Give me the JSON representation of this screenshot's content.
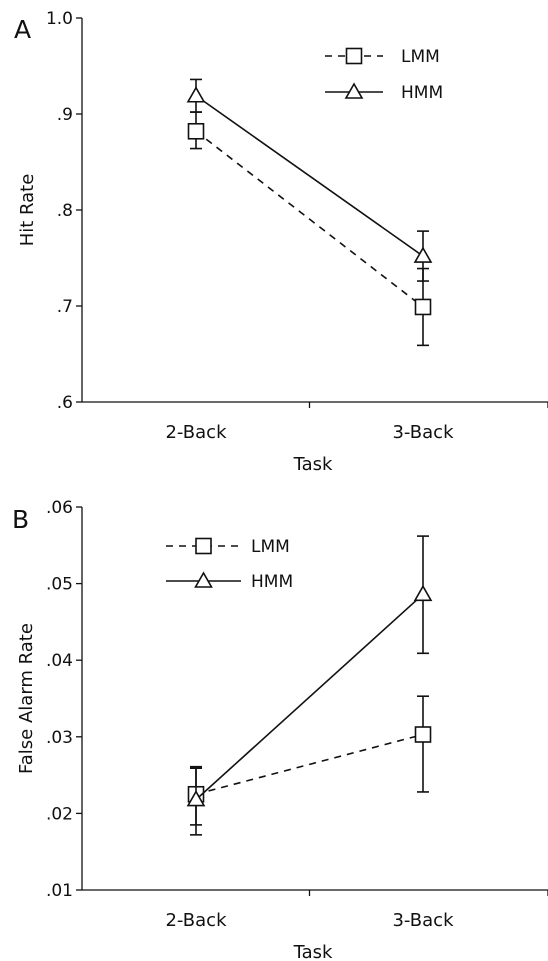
{
  "chart_data": [
    {
      "panel_label": "A",
      "type": "line",
      "xlabel": "Task",
      "ylabel": "Hit Rate",
      "categories": [
        "2-Back",
        "3-Back"
      ],
      "ylim": [
        0.6,
        1.0
      ],
      "yticks": [
        0.6,
        0.7,
        0.8,
        0.9,
        1.0
      ],
      "ytick_labels": [
        ".6",
        ".7",
        ".8",
        ".9",
        "1.0"
      ],
      "legend_position": "top-right",
      "grid": false,
      "series": [
        {
          "name": "LMM",
          "marker": "square",
          "dash": "dashed",
          "values": [
            0.882,
            0.699
          ],
          "err_low": [
            0.864,
            0.659
          ],
          "err_high": [
            0.902,
            0.739
          ]
        },
        {
          "name": "HMM",
          "marker": "triangle",
          "dash": "solid",
          "values": [
            0.919,
            0.752
          ],
          "err_low": [
            0.902,
            0.726
          ],
          "err_high": [
            0.936,
            0.778
          ]
        }
      ]
    },
    {
      "panel_label": "B",
      "type": "line",
      "xlabel": "Task",
      "ylabel": "False Alarm Rate",
      "categories": [
        "2-Back",
        "3-Back"
      ],
      "ylim": [
        0.01,
        0.06
      ],
      "yticks": [
        0.01,
        0.02,
        0.03,
        0.04,
        0.05,
        0.06
      ],
      "ytick_labels": [
        ".01",
        ".02",
        ".03",
        ".04",
        ".05",
        ".06"
      ],
      "legend_position": "top-left",
      "grid": false,
      "series": [
        {
          "name": "LMM",
          "marker": "square",
          "dash": "dashed",
          "values": [
            0.0225,
            0.0303
          ],
          "err_low": [
            0.0185,
            0.0228
          ],
          "err_high": [
            0.0259,
            0.0353
          ]
        },
        {
          "name": "HMM",
          "marker": "triangle",
          "dash": "solid",
          "values": [
            0.0218,
            0.0486
          ],
          "err_low": [
            0.0172,
            0.0409
          ],
          "err_high": [
            0.0261,
            0.0562
          ]
        }
      ]
    }
  ]
}
